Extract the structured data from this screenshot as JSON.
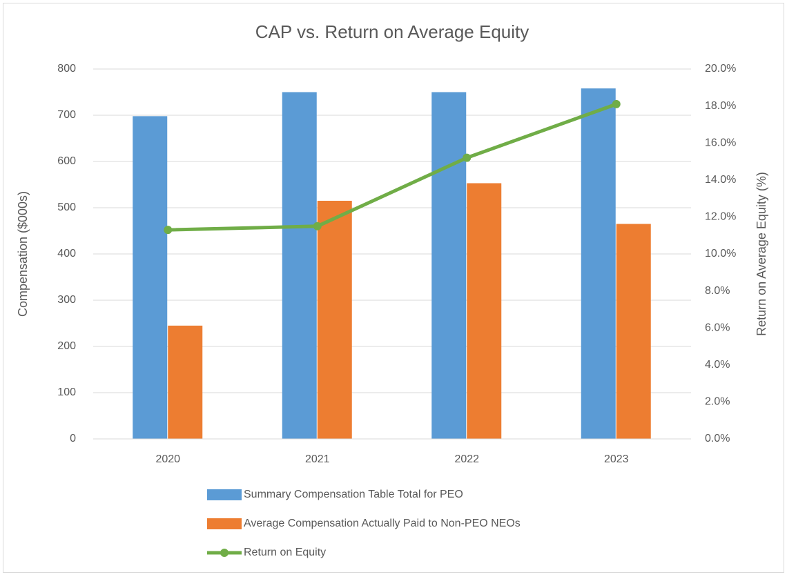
{
  "chart_data": {
    "type": "bar",
    "title": "CAP vs. Return on Average Equity",
    "y_label": "Compensation ($000s)",
    "y2_label": "Return on Average Equity (%)",
    "categories": [
      "2020",
      "2021",
      "2022",
      "2023"
    ],
    "series": [
      {
        "name": "Summary Compensation Table Total for PEO",
        "type": "bar",
        "color": "#5b9bd5",
        "values": [
          698,
          750,
          750,
          758
        ]
      },
      {
        "name": "Average Compensation Actually Paid to Non-PEO NEOs",
        "type": "bar",
        "color": "#ed7d31",
        "values": [
          245,
          515,
          553,
          465
        ]
      },
      {
        "name": "Return on Equity",
        "type": "line",
        "axis": "y2",
        "color": "#70ad47",
        "values": [
          11.3,
          11.5,
          15.2,
          18.1
        ]
      }
    ],
    "ylim": [
      0,
      800
    ],
    "yticks": [
      0,
      100,
      200,
      300,
      400,
      500,
      600,
      700,
      800
    ],
    "y2lim": [
      0,
      20
    ],
    "y2ticks": [
      {
        "value": 0,
        "label": "0.0%"
      },
      {
        "value": 2,
        "label": "2.0%"
      },
      {
        "value": 4,
        "label": "4.0%"
      },
      {
        "value": 6,
        "label": "6.0%"
      },
      {
        "value": 8,
        "label": "8.0%"
      },
      {
        "value": 10,
        "label": "10.0%"
      },
      {
        "value": 12,
        "label": "12.0%"
      },
      {
        "value": 14,
        "label": "14.0%"
      },
      {
        "value": 16,
        "label": "16.0%"
      },
      {
        "value": 18,
        "label": "18.0%"
      },
      {
        "value": 20,
        "label": "20.0%"
      }
    ],
    "grid": true,
    "legend": "bottom"
  }
}
